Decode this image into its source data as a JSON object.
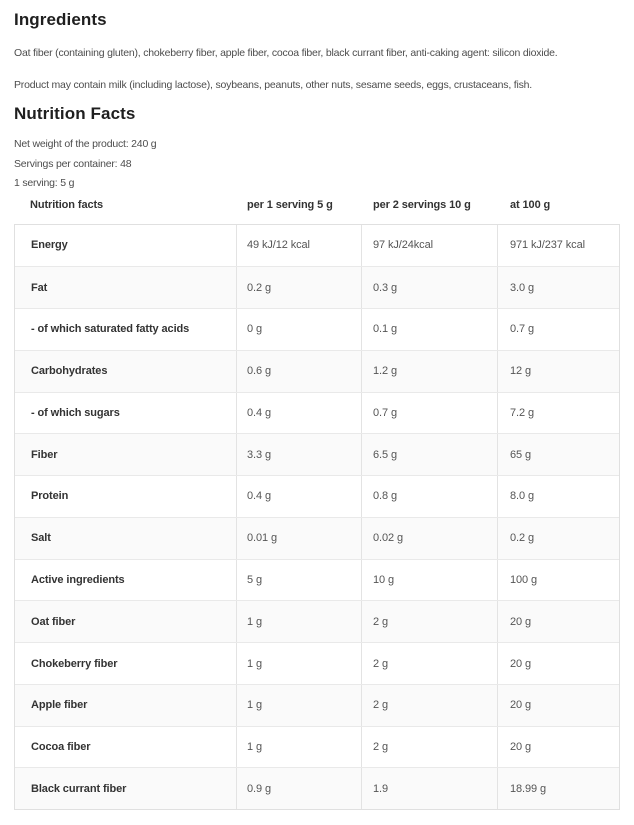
{
  "ingredients": {
    "title": "Ingredients",
    "paragraphs": [
      "Oat fiber (containing gluten), chokeberry fiber, apple fiber, cocoa fiber, black currant fiber, anti-caking agent: silicon dioxide.",
      "Product may contain milk (including lactose), soybeans, peanuts, other nuts, sesame seeds, eggs, crustaceans, fish."
    ]
  },
  "nutrition": {
    "title": "Nutrition Facts",
    "meta": [
      "Net weight of the product: 240 g",
      "Servings per container: 48",
      "1 serving: 5 g"
    ],
    "table": {
      "headers": [
        "Nutrition facts",
        "per 1 serving 5 g",
        "per 2 servings 10 g",
        "at 100 g"
      ],
      "rows": [
        {
          "label": "Energy",
          "values": [
            "49 kJ/12 kcal",
            "97 kJ/24kcal",
            "971 kJ/237 kcal"
          ]
        },
        {
          "label": "Fat",
          "values": [
            "0.2 g",
            "0.3 g",
            "3.0 g"
          ]
        },
        {
          "label": "- of which saturated fatty acids",
          "values": [
            "0 g",
            "0.1 g",
            "0.7 g"
          ]
        },
        {
          "label": "Carbohydrates",
          "values": [
            "0.6 g",
            "1.2 g",
            "12 g"
          ]
        },
        {
          "label": "- of which sugars",
          "values": [
            "0.4 g",
            "0.7 g",
            "7.2 g"
          ]
        },
        {
          "label": "Fiber",
          "values": [
            "3.3 g",
            "6.5 g",
            "65 g"
          ]
        },
        {
          "label": "Protein",
          "values": [
            "0.4 g",
            "0.8 g",
            "8.0 g"
          ]
        },
        {
          "label": "Salt",
          "values": [
            "0.01 g",
            "0.02 g",
            "0.2 g"
          ]
        },
        {
          "label": "Active ingredients",
          "values": [
            "5 g",
            "10 g",
            "100 g"
          ]
        },
        {
          "label": "Oat fiber",
          "values": [
            "1 g",
            "2 g",
            "20 g"
          ]
        },
        {
          "label": "Chokeberry fiber",
          "values": [
            "1 g",
            "2 g",
            "20 g"
          ]
        },
        {
          "label": "Apple fiber",
          "values": [
            "1 g",
            "2 g",
            "20 g"
          ]
        },
        {
          "label": "Cocoa fiber",
          "values": [
            "1 g",
            "2 g",
            "20 g"
          ]
        },
        {
          "label": "Black currant fiber",
          "values": [
            "0.9 g",
            "1.9",
            "18.99 g"
          ]
        }
      ]
    }
  },
  "colors": {
    "heading_text": "#1f1f1f",
    "body_text": "#4d4d4d",
    "table_label_text": "#333333",
    "table_value_text": "#555555",
    "table_border": "#e0e0e0",
    "row_alt_background": "#fafafa"
  }
}
